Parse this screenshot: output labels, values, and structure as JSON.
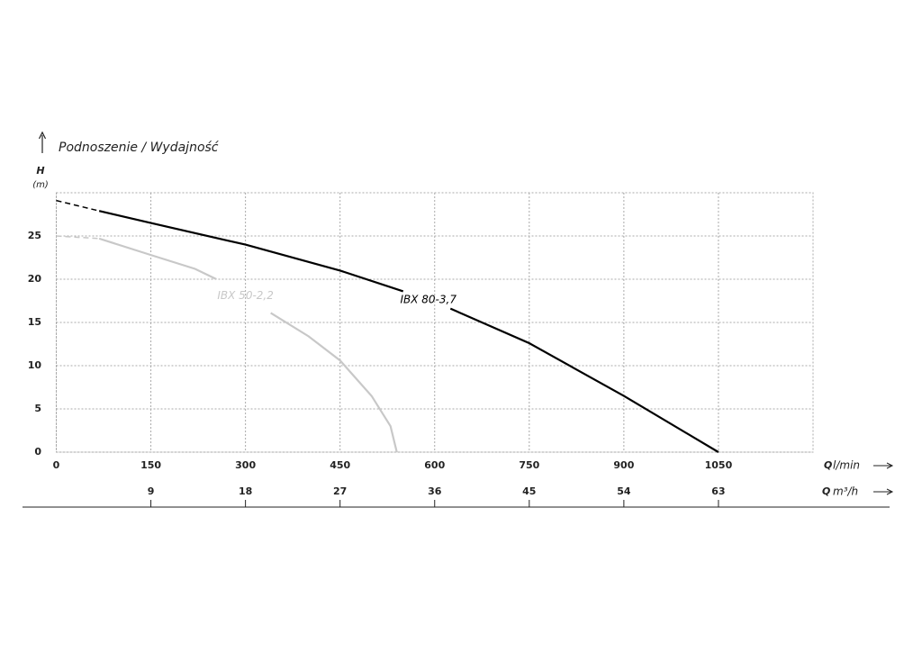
{
  "chart_data": {
    "type": "line",
    "title": "Podnoszenie / Wydajność",
    "y_label": {
      "symbol": "H",
      "unit": "(m)"
    },
    "x_label": {
      "symbol": "Q",
      "unit": "l/min"
    },
    "x2_label": {
      "symbol": "Q",
      "unit": "m³/h"
    },
    "xlim": [
      0,
      1200
    ],
    "xticks": [
      0,
      150,
      300,
      450,
      600,
      750,
      900,
      1050
    ],
    "x2lim": [
      0,
      72
    ],
    "x2ticks": [
      9,
      18,
      27,
      36,
      45,
      54,
      63
    ],
    "ylim": [
      0,
      30
    ],
    "yticks": [
      0,
      5,
      10,
      15,
      20,
      25
    ],
    "grid": true,
    "dashed_below_x": 68,
    "series": [
      {
        "name": "IBX 80-3,7",
        "color": "#000000",
        "x": [
          0,
          68,
          150,
          300,
          450,
          550,
          590,
          625,
          750,
          900,
          1050
        ],
        "values": [
          29.1,
          27.9,
          26.5,
          24.0,
          21.0,
          18.6,
          null,
          16.6,
          12.6,
          6.5,
          0
        ]
      },
      {
        "name": "IBX 50-2,2",
        "color": "#c8c8c8",
        "x": [
          0,
          68,
          150,
          220,
          254,
          300,
          340,
          400,
          450,
          500,
          530,
          540
        ],
        "values": [
          25,
          24.7,
          22.8,
          21.2,
          20.0,
          null,
          16.1,
          13.4,
          10.6,
          6.5,
          3.0,
          0
        ]
      }
    ]
  }
}
